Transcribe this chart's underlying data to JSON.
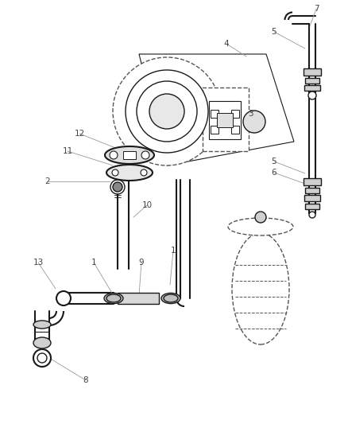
{
  "bg_color": "#ffffff",
  "line_color": "#1a1a1a",
  "dashed_color": "#555555",
  "label_color": "#444444",
  "fig_width": 4.38,
  "fig_height": 5.33,
  "dpi": 100
}
